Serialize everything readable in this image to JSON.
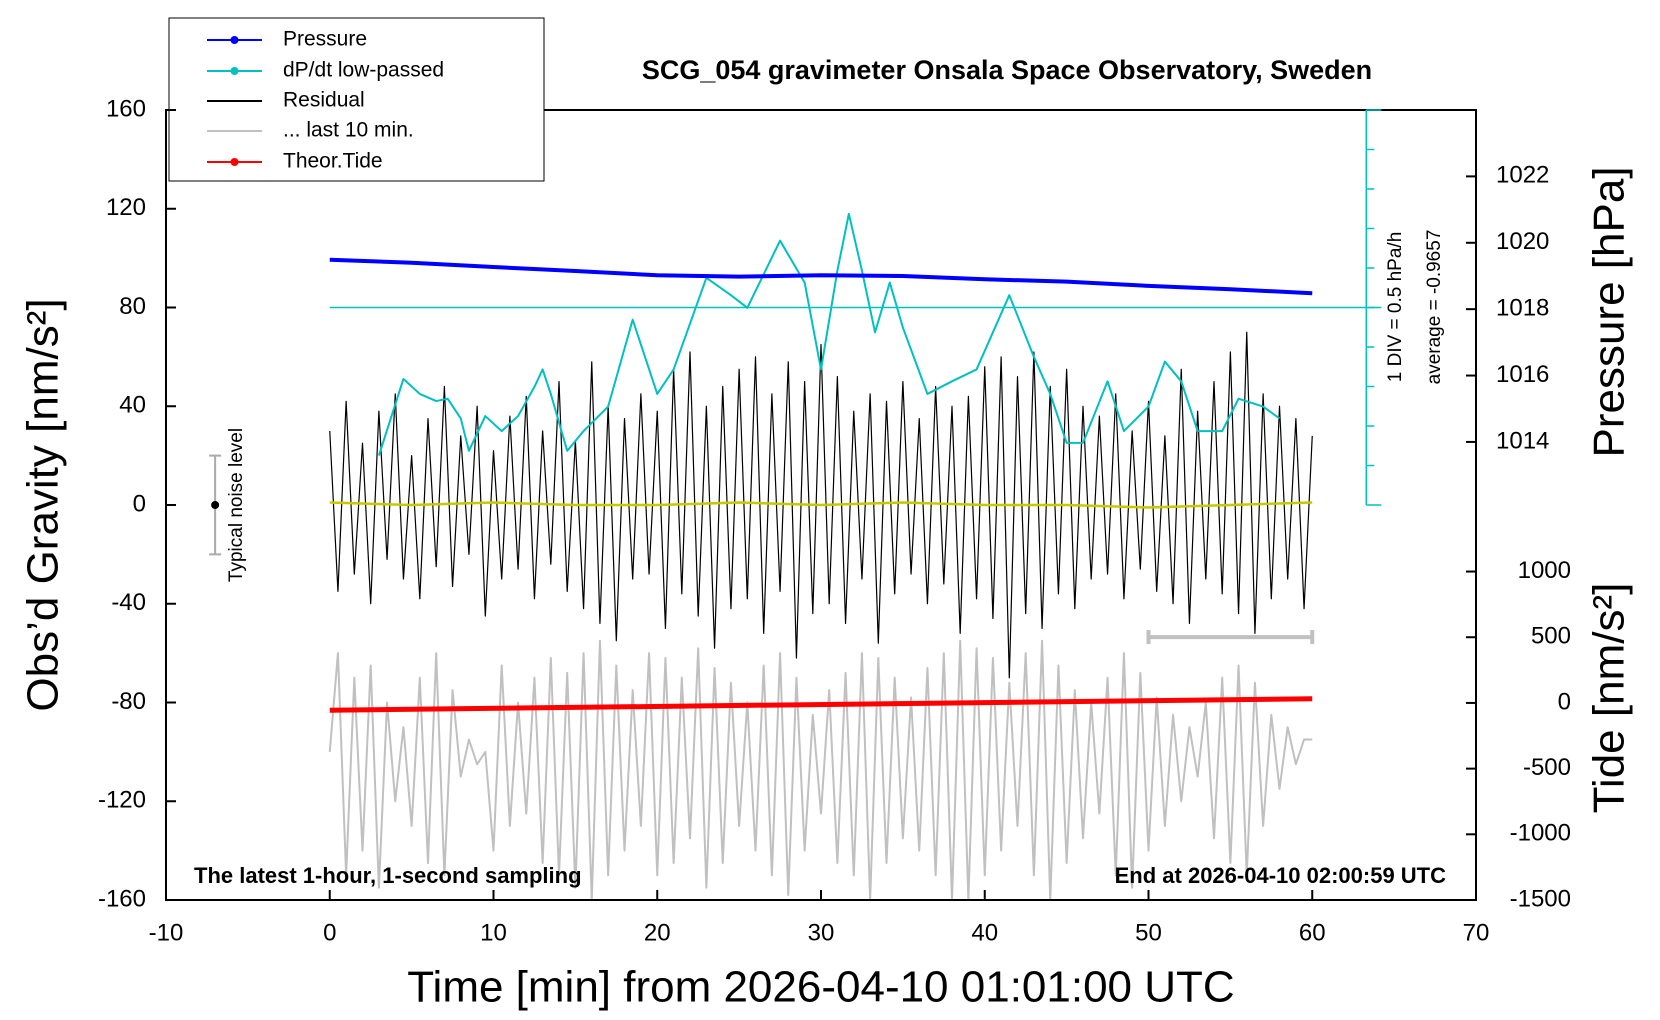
{
  "chart_data": {
    "type": "line",
    "title": "SCG_054 gravimeter Onsala Space Observatory, Sweden",
    "xlabel": "Time [min] from 2026-04-10 01:01:00 UTC",
    "ylabel": "Obs’d Gravity [nm/s²]",
    "pressure_label": "Pressure [hPa]",
    "tide_label": "Tide [nm/s²]",
    "annotation_left": "The latest 1-hour, 1-second sampling",
    "annotation_right": "End at 2026-04-10 02:00:59 UTC",
    "dpdt_scale_label": "1 DIV = 0.5 hPa/h",
    "dpdt_average_label": "average = -0.9657",
    "dpdt_div": 0.5,
    "dpdt_average": -0.9657,
    "noise": {
      "label": "Typical noise level",
      "x": -7,
      "value": 0,
      "error": 20
    },
    "last10_bar": {
      "x": [
        50,
        60
      ],
      "y": -53.5
    },
    "xlim": [
      -10,
      70
    ],
    "xticks": [
      -10,
      0,
      10,
      20,
      30,
      40,
      50,
      60,
      70
    ],
    "ylim": [
      -160,
      160
    ],
    "yticks": [
      -160,
      -120,
      -80,
      -40,
      0,
      40,
      80,
      120,
      160
    ],
    "pressure_lim": [
      1000.2,
      1024
    ],
    "pressure_ticks": [
      1014,
      1016,
      1018,
      1020,
      1022
    ],
    "tide_lim": [
      -1500,
      4513
    ],
    "tide_ticks": [
      -1500,
      -1000,
      -500,
      0,
      500,
      1000
    ],
    "x": [
      0,
      0.5,
      1,
      1.5,
      2,
      2.5,
      3,
      3.5,
      4,
      4.5,
      5,
      5.5,
      6,
      6.5,
      7,
      7.5,
      8,
      8.5,
      9,
      9.5,
      10,
      10.5,
      11,
      11.5,
      12,
      12.5,
      13,
      13.5,
      14,
      14.5,
      15,
      15.5,
      16,
      16.5,
      17,
      17.5,
      18,
      18.5,
      19,
      19.5,
      20,
      20.5,
      21,
      21.5,
      22,
      22.5,
      23,
      23.5,
      24,
      24.5,
      25,
      25.5,
      26,
      26.5,
      27,
      27.5,
      28,
      28.5,
      29,
      29.5,
      30,
      30.5,
      31,
      31.5,
      32,
      32.5,
      33,
      33.5,
      34,
      34.5,
      35,
      35.5,
      36,
      36.5,
      37,
      37.5,
      38,
      38.5,
      39,
      39.5,
      40,
      40.5,
      41,
      41.5,
      42,
      42.5,
      43,
      43.5,
      44,
      44.5,
      45,
      45.5,
      46,
      46.5,
      47,
      47.5,
      48,
      48.5,
      49,
      49.5,
      50,
      50.5,
      51,
      51.5,
      52,
      52.5,
      53,
      53.5,
      54,
      54.5,
      55,
      55.5,
      56,
      56.5,
      57,
      57.5,
      58,
      58.5,
      59,
      59.5,
      60
    ],
    "series": [
      {
        "name": "Pressure",
        "color": "#0000ff",
        "marker": "dot",
        "axis": "pressure",
        "x": [
          0,
          5,
          10,
          15,
          20,
          25,
          30,
          35,
          40,
          45,
          50,
          55,
          60
        ],
        "values": [
          1019.49,
          1019.4,
          1019.27,
          1019.15,
          1019.02,
          1018.98,
          1019.02,
          1019.0,
          1018.9,
          1018.83,
          1018.7,
          1018.6,
          1018.48
        ]
      },
      {
        "name": "dP/dt low-passed",
        "color": "#00c0c0",
        "marker": "dot",
        "axis": "dpdt",
        "x": [
          3,
          4.5,
          5.5,
          6.5,
          7.2,
          8,
          8.5,
          9.5,
          10.5,
          11.5,
          12.5,
          13,
          13.5,
          14.5,
          15.5,
          17,
          18.5,
          20,
          21,
          23,
          24.5,
          25.5,
          27.5,
          29,
          30,
          31,
          31.7,
          32.5,
          33.3,
          34.2,
          35,
          36.5,
          38,
          39.5,
          41.5,
          43,
          44,
          45,
          46,
          47.5,
          48.5,
          50,
          51,
          52,
          53,
          54.5,
          55.5,
          57,
          58
        ],
        "values": [
          -2.84,
          -1.87,
          -2.06,
          -2.15,
          -2.12,
          -2.37,
          -2.78,
          -2.34,
          -2.53,
          -2.34,
          -1.97,
          -1.75,
          -2.06,
          -2.78,
          -2.53,
          -2.22,
          -1.12,
          -2.06,
          -1.75,
          -0.59,
          -0.81,
          -0.97,
          -0.12,
          -0.65,
          -1.75,
          -0.5,
          0.22,
          -0.5,
          -1.28,
          -0.65,
          -1.22,
          -2.06,
          -1.9,
          -1.75,
          -0.81,
          -1.59,
          -2.06,
          -2.68,
          -2.68,
          -1.9,
          -2.53,
          -2.22,
          -1.65,
          -1.9,
          -2.53,
          -2.53,
          -2.12,
          -2.22,
          -2.37
        ]
      },
      {
        "name": "Residual",
        "color": "#000000",
        "values": [
          30,
          -35,
          42,
          -28,
          25,
          -40,
          38,
          -22,
          45,
          -30,
          20,
          -38,
          35,
          -25,
          48,
          -33,
          28,
          -20,
          40,
          -45,
          22,
          -30,
          36,
          -26,
          44,
          -38,
          30,
          -24,
          50,
          -35,
          26,
          -42,
          58,
          -48,
          40,
          -55,
          35,
          -30,
          45,
          -28,
          38,
          -50,
          55,
          -36,
          62,
          -45,
          40,
          -58,
          48,
          -42,
          55,
          -38,
          60,
          -52,
          45,
          -35,
          58,
          -62,
          50,
          -44,
          65,
          -40,
          52,
          -48,
          38,
          -30,
          45,
          -56,
          42,
          -36,
          50,
          -28,
          35,
          -40,
          48,
          -32,
          40,
          -52,
          44,
          -38,
          56,
          -46,
          60,
          -70,
          52,
          -44,
          62,
          -50,
          48,
          -36,
          55,
          -42,
          40,
          -30,
          36,
          -28,
          45,
          -38,
          30,
          -26,
          42,
          -35,
          28,
          -40,
          55,
          -48,
          38,
          -30,
          50,
          -36,
          62,
          -44,
          70,
          -52,
          45,
          -38,
          40,
          -30,
          35,
          -42,
          28
        ]
      },
      {
        "name": "... last 10 min.",
        "color": "#c0c0c0",
        "values": [
          -100,
          -60,
          -150,
          -70,
          -140,
          -65,
          -155,
          -80,
          -120,
          -90,
          -130,
          -70,
          -145,
          -60,
          -150,
          -75,
          -110,
          -95,
          -105,
          -100,
          -140,
          -65,
          -130,
          -80,
          -125,
          -70,
          -145,
          -62,
          -150,
          -68,
          -155,
          -60,
          -160,
          -55,
          -150,
          -65,
          -140,
          -75,
          -130,
          -60,
          -150,
          -62,
          -145,
          -70,
          -135,
          -58,
          -155,
          -66,
          -145,
          -72,
          -130,
          -80,
          -140,
          -65,
          -150,
          -60,
          -158,
          -70,
          -140,
          -85,
          -125,
          -75,
          -145,
          -68,
          -150,
          -60,
          -160,
          -62,
          -145,
          -70,
          -135,
          -78,
          -140,
          -66,
          -150,
          -60,
          -160,
          -55,
          -160,
          -58,
          -150,
          -62,
          -140,
          -72,
          -130,
          -60,
          -150,
          -55,
          -160,
          -65,
          -145,
          -75,
          -135,
          -80,
          -125,
          -70,
          -150,
          -60,
          -155,
          -68,
          -140,
          -78,
          -130,
          -85,
          -120,
          -90,
          -110,
          -80,
          -135,
          -70,
          -145,
          -65,
          -150,
          -72,
          -130,
          -85,
          -115,
          -90,
          -105,
          -95,
          -95
        ]
      },
      {
        "name": "Theor.Tide",
        "color": "#ff0000",
        "marker": "dot",
        "axis": "tide",
        "x": [
          0,
          60
        ],
        "values": [
          -56,
          32
        ]
      },
      {
        "color": "#c8c800",
        "x": [
          0,
          5,
          10,
          15,
          20,
          25,
          30,
          35,
          40,
          45,
          50,
          55,
          60
        ],
        "values": [
          1,
          0,
          1,
          0,
          0,
          1,
          0,
          1,
          0,
          0,
          -1,
          0,
          1
        ]
      }
    ]
  }
}
